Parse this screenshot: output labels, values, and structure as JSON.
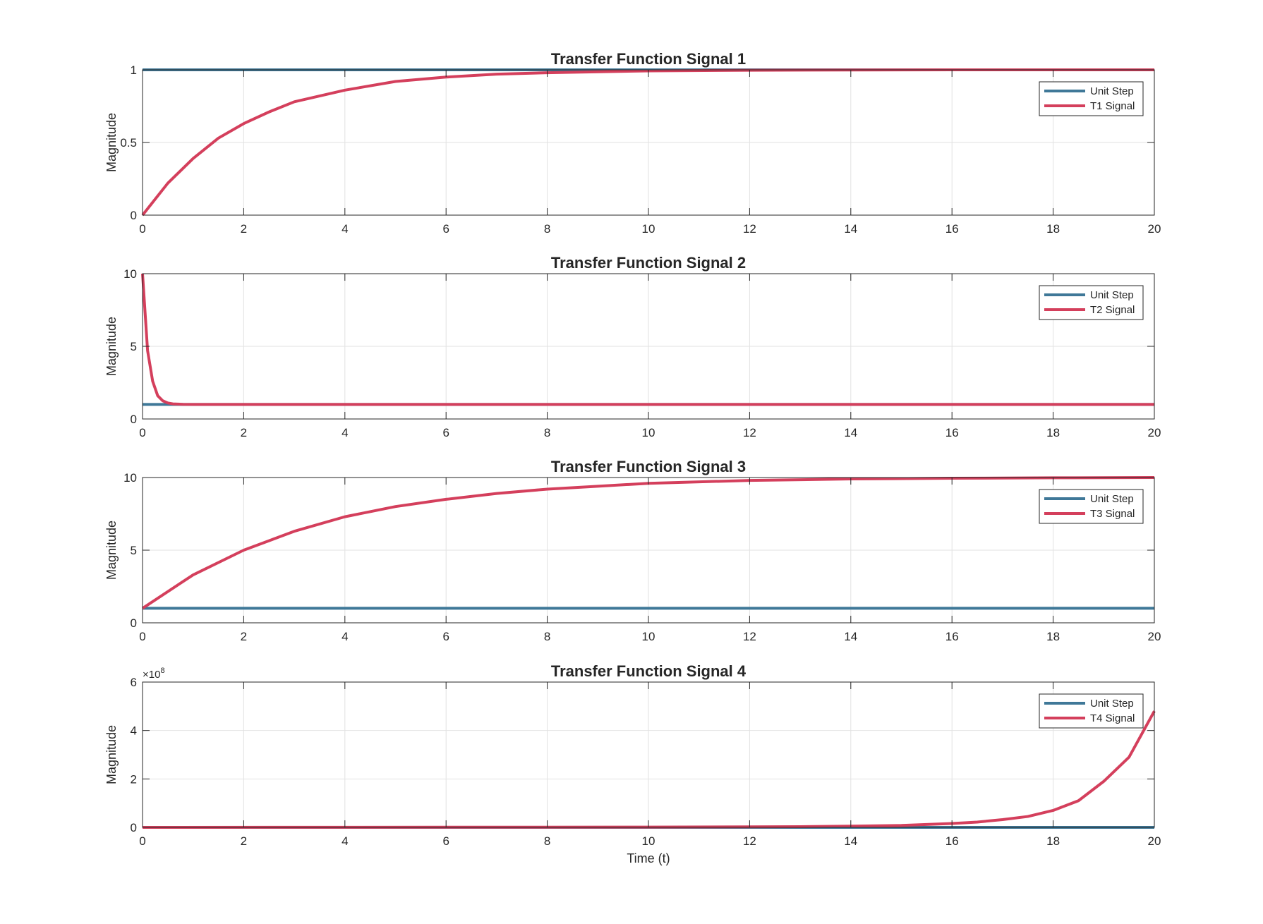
{
  "chart_data": [
    {
      "type": "line",
      "title": "Transfer Function Signal 1",
      "xlabel": "",
      "ylabel": "Magnitude",
      "xlim": [
        0,
        20
      ],
      "ylim": [
        0,
        1
      ],
      "xticks": [
        0,
        2,
        4,
        6,
        8,
        10,
        12,
        14,
        16,
        18,
        20
      ],
      "yticks": [
        0,
        0.5,
        1
      ],
      "ytick_labels": [
        "0",
        "0.5",
        "1"
      ],
      "exponent_label": "",
      "grid": true,
      "legend": "top-right",
      "series": [
        {
          "name": "Unit Step",
          "color": "#3f7898",
          "x": [
            0,
            20
          ],
          "y": [
            1,
            1
          ]
        },
        {
          "name": "T1 Signal",
          "color": "#d43f5c",
          "x": [
            0,
            0.5,
            1,
            1.5,
            2,
            2.5,
            3,
            4,
            5,
            6,
            7,
            8,
            10,
            12,
            14,
            16,
            18,
            20
          ],
          "y": [
            0,
            0.22,
            0.39,
            0.53,
            0.63,
            0.71,
            0.78,
            0.86,
            0.92,
            0.95,
            0.97,
            0.98,
            0.993,
            0.997,
            0.999,
            1.0,
            1.0,
            1.0
          ]
        }
      ]
    },
    {
      "type": "line",
      "title": "Transfer Function Signal 2",
      "xlabel": "",
      "ylabel": "Magnitude",
      "xlim": [
        0,
        20
      ],
      "ylim": [
        0,
        10
      ],
      "xticks": [
        0,
        2,
        4,
        6,
        8,
        10,
        12,
        14,
        16,
        18,
        20
      ],
      "yticks": [
        0,
        5,
        10
      ],
      "ytick_labels": [
        "0",
        "5",
        "10"
      ],
      "exponent_label": "",
      "grid": true,
      "legend": "top-right",
      "series": [
        {
          "name": "Unit Step",
          "color": "#3f7898",
          "x": [
            0,
            20
          ],
          "y": [
            1,
            1
          ]
        },
        {
          "name": "T2 Signal",
          "color": "#d43f5c",
          "x": [
            0,
            0.1,
            0.2,
            0.3,
            0.4,
            0.5,
            0.6,
            0.8,
            1,
            1.5,
            2,
            4,
            6,
            8,
            10,
            12,
            14,
            16,
            18,
            20
          ],
          "y": [
            10,
            4.7,
            2.6,
            1.6,
            1.25,
            1.1,
            1.04,
            1.01,
            1.0,
            1.0,
            1.0,
            1.0,
            1.0,
            1.0,
            1.0,
            1.0,
            1.0,
            1.0,
            1.0,
            1.0
          ]
        }
      ]
    },
    {
      "type": "line",
      "title": "Transfer Function Signal 3",
      "xlabel": "",
      "ylabel": "Magnitude",
      "xlim": [
        0,
        20
      ],
      "ylim": [
        0,
        10
      ],
      "xticks": [
        0,
        2,
        4,
        6,
        8,
        10,
        12,
        14,
        16,
        18,
        20
      ],
      "yticks": [
        0,
        5,
        10
      ],
      "ytick_labels": [
        "0",
        "5",
        "10"
      ],
      "exponent_label": "",
      "grid": true,
      "legend": "top-right",
      "series": [
        {
          "name": "Unit Step",
          "color": "#3f7898",
          "x": [
            0,
            20
          ],
          "y": [
            1,
            1
          ]
        },
        {
          "name": "T3 Signal",
          "color": "#d43f5c",
          "x": [
            0,
            1,
            2,
            3,
            4,
            5,
            6,
            7,
            8,
            9,
            10,
            12,
            14,
            16,
            18,
            20
          ],
          "y": [
            1,
            3.3,
            5.0,
            6.3,
            7.3,
            8.0,
            8.5,
            8.9,
            9.2,
            9.4,
            9.6,
            9.8,
            9.9,
            9.95,
            9.98,
            10.0
          ]
        }
      ]
    },
    {
      "type": "line",
      "title": "Transfer Function Signal 4",
      "xlabel": "Time (t)",
      "ylabel": "Magnitude",
      "xlim": [
        0,
        20
      ],
      "ylim": [
        0,
        600000000
      ],
      "xticks": [
        0,
        2,
        4,
        6,
        8,
        10,
        12,
        14,
        16,
        18,
        20
      ],
      "yticks": [
        0,
        200000000,
        400000000,
        600000000
      ],
      "ytick_labels": [
        "0",
        "2",
        "4",
        "6"
      ],
      "exponent_label": "×10",
      "exponent_power": "8",
      "grid": true,
      "legend": "top-right",
      "series": [
        {
          "name": "Unit Step",
          "color": "#3f7898",
          "x": [
            0,
            20
          ],
          "y": [
            0,
            0
          ]
        },
        {
          "name": "T4 Signal",
          "color": "#d43f5c",
          "x": [
            0,
            10,
            12,
            13,
            14,
            15,
            15.5,
            16,
            16.5,
            17,
            17.5,
            18,
            18.5,
            19,
            19.5,
            20
          ],
          "y": [
            0,
            1000000,
            2000000,
            3000000,
            5000000,
            8000000,
            12000000,
            16000000,
            22000000,
            32000000,
            45000000,
            70000000,
            110000000,
            190000000,
            290000000,
            480000000
          ]
        }
      ]
    }
  ]
}
